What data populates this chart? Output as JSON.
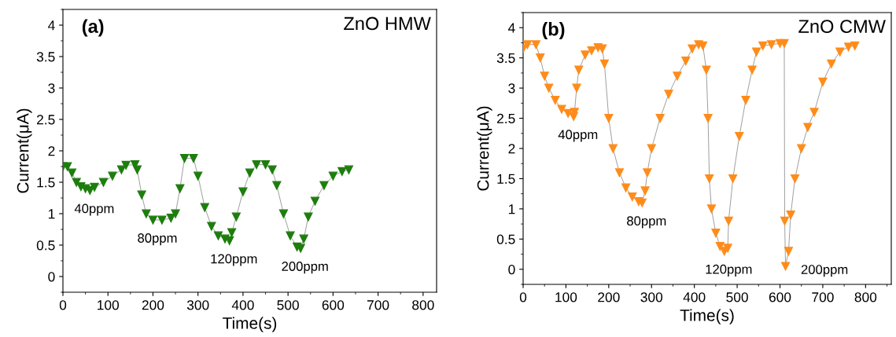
{
  "chart_data": [
    {
      "type": "line",
      "title": "ZnO HMW",
      "xlabel": "Time(s)",
      "ylabel": "Current(μA)",
      "annotations": [
        "(a)",
        {
          "text": "40ppm",
          "x": 60,
          "y": 1.37
        },
        {
          "text": "80ppm",
          "x": 200,
          "y": 0.9
        },
        {
          "text": "120ppm",
          "x": 370,
          "y": 0.57
        },
        {
          "text": "200ppm",
          "x": 528,
          "y": 0.45
        }
      ],
      "series": [
        {
          "color": "#1e7d0e",
          "x": [
            0,
            10,
            20,
            30,
            40,
            50,
            60,
            70,
            90,
            110,
            130,
            140,
            160,
            165,
            175,
            185,
            200,
            220,
            240,
            250,
            260,
            270,
            290,
            300,
            315,
            330,
            345,
            360,
            370,
            375,
            385,
            400,
            415,
            430,
            450,
            465,
            475,
            490,
            505,
            520,
            528,
            535,
            545,
            560,
            580,
            600,
            620,
            635
          ],
          "values": [
            1.75,
            1.75,
            1.65,
            1.5,
            1.43,
            1.4,
            1.37,
            1.42,
            1.5,
            1.6,
            1.7,
            1.77,
            1.78,
            1.7,
            1.3,
            1.0,
            0.9,
            0.9,
            0.93,
            1.0,
            1.4,
            1.88,
            1.88,
            1.6,
            1.1,
            0.8,
            0.65,
            0.6,
            0.57,
            0.7,
            0.95,
            1.35,
            1.65,
            1.78,
            1.78,
            1.7,
            1.45,
            1.0,
            0.65,
            0.47,
            0.45,
            0.6,
            0.95,
            1.2,
            1.45,
            1.6,
            1.67,
            1.7
          ]
        }
      ],
      "xlim": [
        0,
        830
      ],
      "xticks": [
        0,
        100,
        200,
        300,
        400,
        500,
        600,
        700,
        800
      ],
      "ylim": [
        -0.25,
        4.25
      ],
      "yticks": [
        0,
        0.5,
        1,
        1.5,
        2,
        2.5,
        3,
        3.5,
        4
      ],
      "marker": "triangle",
      "grid": false
    },
    {
      "type": "line",
      "title": "ZnO CMW",
      "xlabel": "Time(s)",
      "ylabel": "Current(μA)",
      "annotations": [
        "(b)",
        {
          "text": "40ppm",
          "x": 118,
          "y": 2.53
        },
        {
          "text": "80ppm",
          "x": 278,
          "y": 1.1
        },
        {
          "text": "120ppm",
          "x": 470,
          "y": 0.3
        },
        {
          "text": "200ppm",
          "x": 613,
          "y": 0.05
        }
      ],
      "series": [
        {
          "color": "#ff8c1a",
          "x": [
            0,
            10,
            30,
            40,
            50,
            60,
            75,
            90,
            105,
            118,
            120,
            125,
            130,
            145,
            160,
            175,
            185,
            190,
            200,
            210,
            225,
            240,
            255,
            270,
            278,
            285,
            290,
            300,
            320,
            340,
            360,
            380,
            395,
            410,
            420,
            428,
            432,
            435,
            440,
            450,
            460,
            470,
            478,
            480,
            490,
            505,
            520,
            535,
            545,
            560,
            580,
            600,
            610,
            611,
            613,
            620,
            625,
            635,
            650,
            665,
            680,
            700,
            720,
            740,
            760,
            775
          ],
          "values": [
            3.65,
            3.72,
            3.72,
            3.5,
            3.2,
            3.0,
            2.8,
            2.65,
            2.58,
            2.53,
            2.6,
            3.0,
            3.3,
            3.55,
            3.62,
            3.67,
            3.65,
            3.4,
            2.5,
            2.0,
            1.6,
            1.35,
            1.2,
            1.12,
            1.1,
            1.3,
            1.6,
            2.0,
            2.5,
            2.9,
            3.2,
            3.45,
            3.65,
            3.72,
            3.7,
            3.3,
            2.5,
            1.5,
            1.0,
            0.6,
            0.38,
            0.3,
            0.35,
            0.8,
            1.5,
            2.2,
            2.8,
            3.3,
            3.6,
            3.7,
            3.72,
            3.74,
            3.74,
            0.8,
            0.05,
            0.3,
            0.9,
            1.5,
            2.0,
            2.35,
            2.6,
            3.1,
            3.4,
            3.6,
            3.68,
            3.7
          ]
        }
      ],
      "xlim": [
        0,
        860
      ],
      "xticks": [
        0,
        100,
        200,
        300,
        400,
        500,
        600,
        700,
        800
      ],
      "ylim": [
        -0.25,
        4.25
      ],
      "yticks": [
        0,
        0.5,
        1,
        1.5,
        2,
        2.5,
        3,
        3.5,
        4
      ],
      "marker": "triangle",
      "grid": false
    }
  ]
}
